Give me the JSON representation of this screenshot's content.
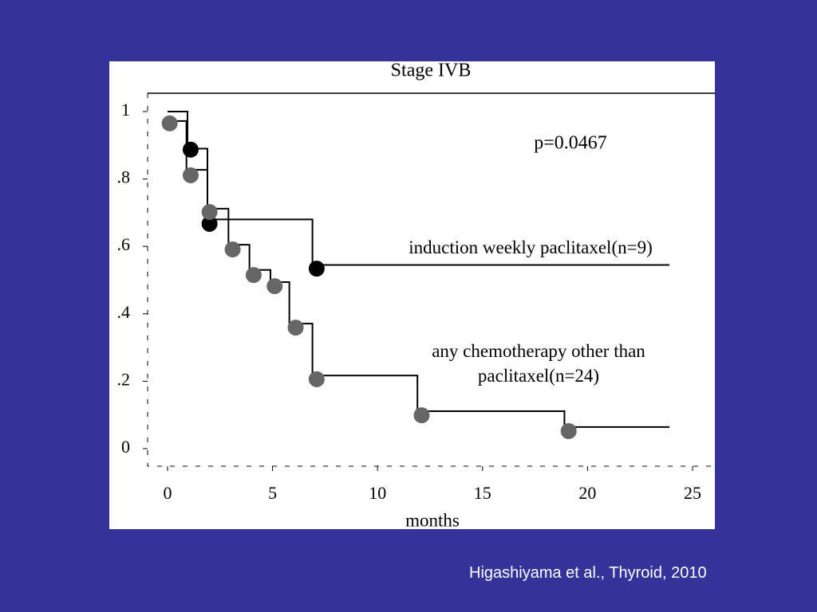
{
  "chart_data": {
    "type": "step",
    "title": "Stage IVB",
    "xlabel": "months",
    "annotation": "p=0.0467",
    "xlim": [
      0,
      25
    ],
    "ylim": [
      0,
      1
    ],
    "xticks": [
      0,
      5,
      10,
      15,
      20,
      25
    ],
    "yticks": [
      0,
      {
        "value": 0.2,
        "label": ".2"
      },
      {
        "value": 0.4,
        "label": ".4"
      },
      {
        "value": 0.6,
        "label": ".6"
      },
      {
        "value": 0.8,
        "label": ".8"
      },
      1
    ],
    "series": [
      {
        "name": "induction weekly paclitaxel(n=9)",
        "color": "#000000",
        "x": [
          0,
          0.95,
          1.9,
          6.9,
          23.9
        ],
        "values": [
          1.0,
          0.89,
          0.68,
          0.545,
          0.545
        ],
        "markers": {
          "x": [
            1.1,
            2.0,
            7.1
          ],
          "values": [
            0.887,
            0.667,
            0.534
          ]
        }
      },
      {
        "name": "any chemotherapy other than paclitaxel(n=24)",
        "color": "#666666",
        "x": [
          0,
          0.9,
          1.9,
          2.9,
          3.9,
          4.9,
          5.8,
          6.9,
          11.9,
          18.9,
          23.9
        ],
        "values": [
          0.972,
          0.827,
          0.712,
          0.605,
          0.53,
          0.494,
          0.371,
          0.217,
          0.111,
          0.064,
          0.064
        ],
        "markers": {
          "x": [
            0.1,
            1.1,
            2.0,
            3.1,
            4.1,
            5.1,
            6.1,
            7.1,
            12.1,
            19.1
          ],
          "values": [
            0.965,
            0.811,
            0.702,
            0.591,
            0.515,
            0.482,
            0.359,
            0.206,
            0.099,
            0.052
          ]
        }
      }
    ]
  },
  "citation": "Higashiyama et al., Thyroid, 2010"
}
